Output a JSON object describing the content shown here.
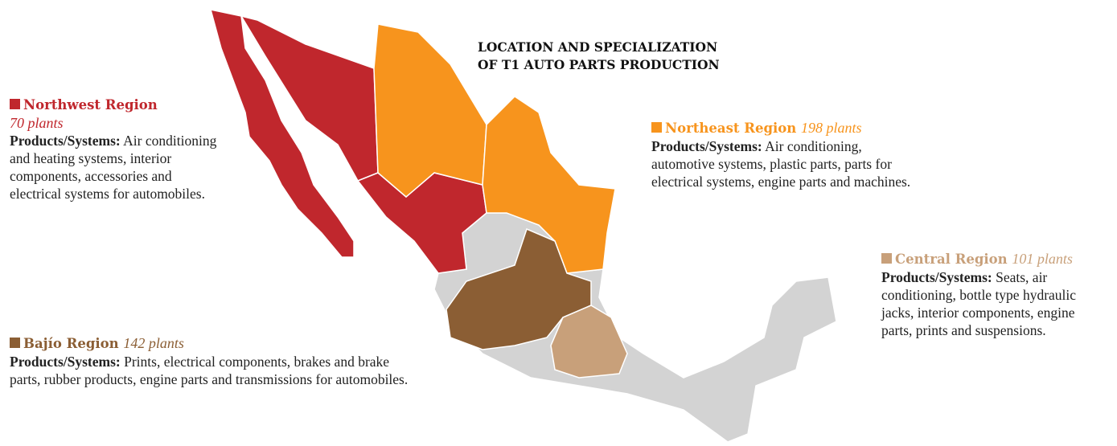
{
  "title": [
    "LOCATION AND SPECIALIZATION",
    "OF T1 AUTO PARTS PRODUCTION"
  ],
  "regions": [
    {
      "name": "Northwest Region",
      "plants": "70 plants",
      "label": "Products/Systems:",
      "text": "Air conditioning and heating systems, interior components, accessories and electrical systems for automobiles."
    },
    {
      "name": "Northeast Region",
      "plants": "198 plants",
      "label": "Products/Systems:",
      "text": "Air conditioning, automotive systems, plastic parts, parts for electrical systems, engine parts and machines."
    },
    {
      "name": "Central Region",
      "plants": "101 plants",
      "label": "Products/Systems:",
      "text": "Seats, air conditioning, bottle type hydraulic jacks, interior components, engine parts, prints and suspensions."
    },
    {
      "name": "Bajío Region",
      "plants": "142 plants",
      "label": "Products/Systems:",
      "text": "Prints, electrical components, brakes and brake parts, rubber products, engine parts and transmissions for automobiles."
    }
  ]
}
